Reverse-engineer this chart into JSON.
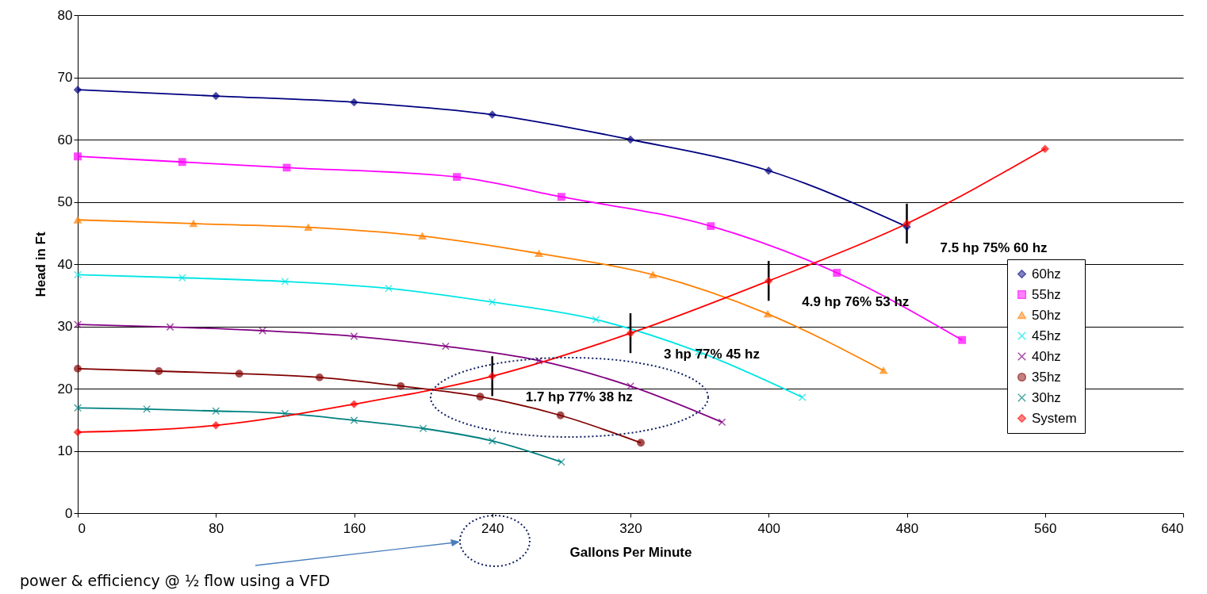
{
  "chart_data": {
    "type": "line",
    "xlabel": "Gallons Per Minute",
    "ylabel": "Head in Ft",
    "xlim": [
      0,
      640
    ],
    "xticks": [
      0,
      80,
      160,
      240,
      320,
      400,
      480,
      560,
      640
    ],
    "ylim": [
      0,
      80
    ],
    "yticks": [
      0,
      10,
      20,
      30,
      40,
      50,
      60,
      70,
      80
    ],
    "grid": "y",
    "legend": "right",
    "series": [
      {
        "name": "60hz",
        "color": "#000080",
        "marker": "diamond",
        "x": [
          0,
          80,
          160,
          240,
          320,
          400,
          480
        ],
        "values": [
          68,
          67,
          66,
          64,
          60,
          55,
          46
        ]
      },
      {
        "name": "55hz",
        "color": "#ff00ff",
        "marker": "square",
        "x": [
          0,
          60.5,
          121,
          219.5,
          280,
          366.5,
          439.5,
          512
        ],
        "values": [
          57.3,
          56.4,
          55.5,
          54,
          50.8,
          46.1,
          38.6,
          27.8
        ]
      },
      {
        "name": "50hz",
        "color": "#ff8000",
        "marker": "triangle",
        "x": [
          0,
          67,
          133.5,
          199.5,
          267,
          333,
          399.5,
          466.5
        ],
        "values": [
          47.1,
          46.5,
          45.9,
          44.5,
          41.7,
          38.3,
          32,
          22.9
        ]
      },
      {
        "name": "45hz",
        "color": "#00e5e5",
        "marker": "cross",
        "x": [
          0,
          60.5,
          120,
          180,
          240,
          300,
          359.5,
          419.5
        ],
        "values": [
          38.3,
          37.8,
          37.2,
          36.1,
          33.9,
          31.1,
          25.9,
          18.6
        ]
      },
      {
        "name": "40hz",
        "color": "#800080",
        "marker": "cross",
        "x": [
          0,
          53.5,
          107,
          160,
          213,
          267,
          320,
          373
        ],
        "values": [
          30.3,
          29.9,
          29.3,
          28.4,
          26.8,
          24.5,
          20.4,
          14.6
        ]
      },
      {
        "name": "35hz",
        "color": "#800000",
        "marker": "circle",
        "x": [
          0,
          47,
          93.5,
          140,
          187,
          233,
          279.5,
          326
        ],
        "values": [
          23.2,
          22.8,
          22.4,
          21.8,
          20.4,
          18.7,
          15.7,
          11.3
        ]
      },
      {
        "name": "30hz",
        "color": "#008080",
        "marker": "cross",
        "x": [
          0,
          40,
          80,
          120,
          160,
          200,
          240,
          280
        ],
        "values": [
          16.9,
          16.7,
          16.4,
          16,
          14.9,
          13.6,
          11.6,
          8.2
        ]
      },
      {
        "name": "System",
        "color": "#ff0000",
        "marker": "diamond",
        "x": [
          0,
          80,
          160,
          240,
          320,
          400,
          480,
          560
        ],
        "values": [
          13,
          14.1,
          17.5,
          22,
          28.9,
          37.3,
          46.5,
          58.5
        ],
        "errors": [
          null,
          null,
          null,
          3.2,
          3.2,
          3.2,
          3.2,
          null
        ]
      }
    ],
    "annotations": [
      {
        "text": "7.5 hp  75%  60 hz",
        "x": 480,
        "y": 46
      },
      {
        "text": "4.9 hp  76%  53 hz",
        "x": 400,
        "y": 37.3
      },
      {
        "text": "3 hp  77%  45 hz",
        "x": 320,
        "y": 28.9
      },
      {
        "text": "1.7 hp  77%  38 hz",
        "x": 240,
        "y": 22
      },
      "power & efficiency @ ½ flow using a VFD"
    ]
  }
}
